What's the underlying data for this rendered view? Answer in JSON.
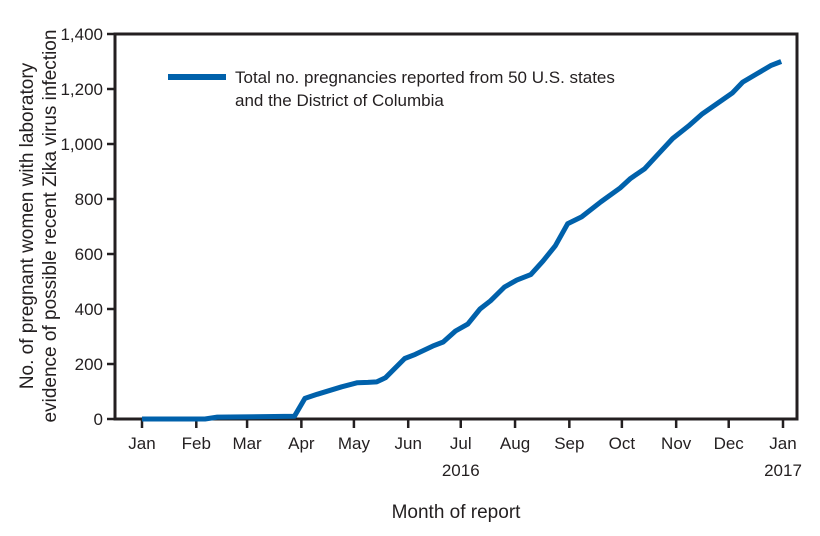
{
  "chart_data": {
    "type": "line",
    "title": "",
    "xlabel": "Month of report",
    "ylabel_lines": [
      "No. of pregnant women with laboratory",
      "evidence of possible recent Zika virus infection"
    ],
    "ylim": [
      0,
      1400
    ],
    "yticks": [
      0,
      200,
      400,
      600,
      800,
      1000,
      1200,
      1400
    ],
    "xlim": [
      "2016-01-01",
      "2017-01-01"
    ],
    "xticks": [
      {
        "date": "2016-01-01",
        "label": "Jan"
      },
      {
        "date": "2016-02-01",
        "label": "Feb"
      },
      {
        "date": "2016-03-01",
        "label": "Mar"
      },
      {
        "date": "2016-04-01",
        "label": "Apr"
      },
      {
        "date": "2016-05-01",
        "label": "May"
      },
      {
        "date": "2016-06-01",
        "label": "Jun"
      },
      {
        "date": "2016-07-01",
        "label": "Jul"
      },
      {
        "date": "2016-08-01",
        "label": "Aug"
      },
      {
        "date": "2016-09-01",
        "label": "Sep"
      },
      {
        "date": "2016-10-01",
        "label": "Oct"
      },
      {
        "date": "2016-11-01",
        "label": "Nov"
      },
      {
        "date": "2016-12-01",
        "label": "Dec"
      },
      {
        "date": "2017-01-01",
        "label": "Jan"
      }
    ],
    "year_labels": [
      {
        "date": "2016-07-01",
        "label": "2016"
      },
      {
        "date": "2017-01-01",
        "label": "2017"
      }
    ],
    "grid": false,
    "legend_placement": "top-left",
    "series": [
      {
        "name": "Total no. pregnancies reported from 50 U.S. states and the District of Columbia",
        "legend_lines": [
          "Total no. pregnancies reported from 50 U.S. states",
          "and the District of Columbia"
        ],
        "color": "#0061ab",
        "x": [
          "2016-01-01",
          "2016-02-06",
          "2016-02-13",
          "2016-03-28",
          "2016-04-03",
          "2016-04-10",
          "2016-04-24",
          "2016-05-03",
          "2016-05-09",
          "2016-05-14",
          "2016-05-19",
          "2016-05-30",
          "2016-06-05",
          "2016-06-15",
          "2016-06-21",
          "2016-06-28",
          "2016-07-05",
          "2016-07-12",
          "2016-07-18",
          "2016-07-26",
          "2016-08-02",
          "2016-08-10",
          "2016-08-17",
          "2016-08-24",
          "2016-08-31",
          "2016-09-08",
          "2016-09-19",
          "2016-09-30",
          "2016-10-06",
          "2016-10-14",
          "2016-10-22",
          "2016-10-30",
          "2016-11-08",
          "2016-11-16",
          "2016-11-25",
          "2016-12-03",
          "2016-12-09",
          "2016-12-17",
          "2016-12-25",
          "2016-12-31"
        ],
        "y": [
          0,
          0,
          7,
          10,
          75,
          90,
          117,
          132,
          133,
          135,
          150,
          220,
          235,
          265,
          280,
          320,
          345,
          400,
          430,
          480,
          505,
          525,
          575,
          630,
          710,
          735,
          790,
          840,
          875,
          910,
          965,
          1020,
          1065,
          1110,
          1150,
          1185,
          1225,
          1255,
          1285,
          1300
        ]
      }
    ]
  }
}
